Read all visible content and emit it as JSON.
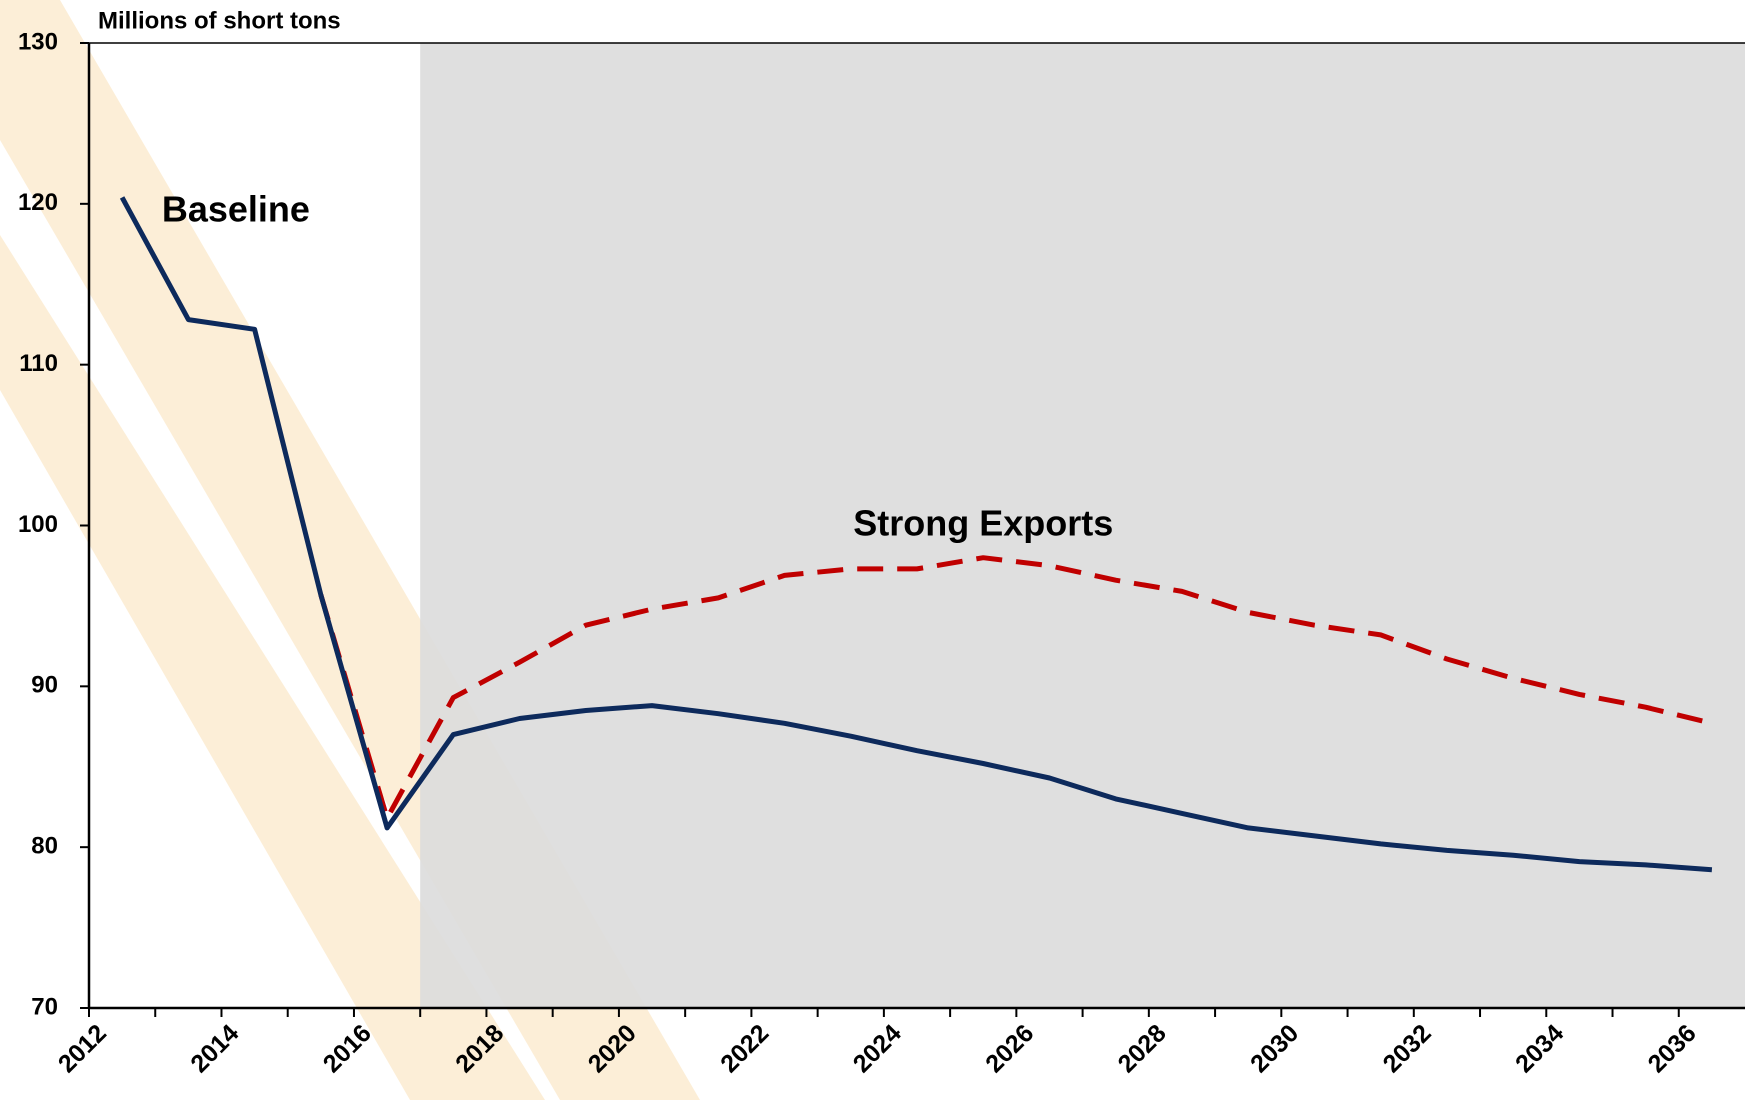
{
  "chart_data": {
    "type": "line",
    "y_axis_label": "Millions of short tons",
    "annotations": [
      "Baseline",
      "Strong Exports"
    ],
    "categories": [
      "2012",
      null,
      "2014",
      null,
      "2016",
      null,
      "2018",
      null,
      "2020",
      null,
      "2022",
      null,
      "2024",
      null,
      "2026",
      null,
      "2028",
      null,
      "2030",
      null,
      "2032",
      null,
      "2034",
      null,
      "2036"
    ],
    "series": [
      {
        "name": "Baseline",
        "color": "#0d2a5c",
        "dashed": false,
        "values": [
          120.4,
          112.8,
          112.2,
          95.7,
          81.2,
          87.0,
          88.0,
          88.5,
          88.8,
          88.3,
          87.7,
          86.9,
          86.0,
          85.2,
          84.3,
          83.0,
          82.1,
          81.2,
          80.7,
          80.2,
          79.8,
          79.5,
          79.1,
          78.9,
          78.6
        ]
      },
      {
        "name": "Strong Exports",
        "color": "#c00000",
        "dashed": true,
        "values": [
          null,
          null,
          null,
          95.7,
          81.8,
          89.3,
          91.5,
          93.8,
          94.8,
          95.5,
          96.9,
          97.3,
          97.3,
          98.0,
          97.5,
          96.6,
          95.9,
          94.6,
          93.8,
          93.2,
          91.7,
          90.5,
          89.5,
          88.7,
          87.7
        ]
      }
    ],
    "ylim": [
      70,
      130
    ],
    "yticks": [
      70,
      80,
      90,
      100,
      110,
      120,
      130
    ],
    "grid": false
  }
}
